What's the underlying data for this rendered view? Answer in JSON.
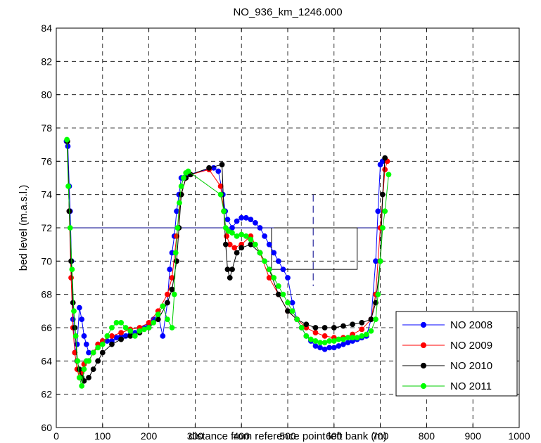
{
  "chart_data": {
    "type": "line",
    "title": "NO_936_km_1246.000",
    "xlabel": "distance from reference point left bank (m)",
    "ylabel": "bed level (m.a.s.l.)",
    "xlim": [
      0,
      1000
    ],
    "ylim": [
      60,
      84
    ],
    "xticks": [
      0,
      100,
      200,
      300,
      400,
      500,
      600,
      700,
      800,
      900,
      1000
    ],
    "yticks": [
      60,
      62,
      64,
      66,
      68,
      70,
      72,
      74,
      76,
      78,
      80,
      82,
      84
    ],
    "grid": true,
    "legend_position": "bottom-right",
    "colors": {
      "frame": "#000000",
      "grid": "#000000",
      "reference": "#00008b"
    },
    "reference_lines": {
      "level_line": {
        "x": [
          25,
          710
        ],
        "y": [
          72,
          72
        ]
      },
      "structure": {
        "x": [
          465,
          465,
          650,
          650,
          470
        ],
        "y": [
          72,
          69.5,
          69.5,
          72,
          72
        ]
      },
      "dashed_vertical": {
        "x": [
          555,
          555
        ],
        "y": [
          74,
          68.5
        ]
      }
    },
    "series": [
      {
        "name": "NO 2008",
        "color": "#0000ff",
        "x": [
          22,
          25,
          28,
          30,
          33,
          36,
          40,
          45,
          50,
          55,
          60,
          65,
          70,
          80,
          90,
          100,
          110,
          120,
          130,
          140,
          150,
          160,
          170,
          180,
          190,
          200,
          210,
          220,
          230,
          240,
          245,
          250,
          255,
          260,
          265,
          270,
          275,
          280,
          285,
          340,
          350,
          360,
          365,
          370,
          380,
          390,
          400,
          410,
          420,
          430,
          440,
          450,
          460,
          470,
          480,
          490,
          500,
          510,
          520,
          530,
          540,
          550,
          560,
          570,
          580,
          590,
          600,
          610,
          620,
          630,
          640,
          650,
          660,
          670,
          680,
          690,
          695,
          700,
          705
        ],
        "y": [
          77.2,
          76.9,
          74.5,
          73.0,
          70.0,
          66.5,
          64.5,
          65.0,
          67.2,
          66.5,
          65.5,
          65.0,
          64.5,
          64.5,
          65.0,
          65.2,
          65.2,
          65.2,
          65.4,
          65.5,
          65.5,
          65.6,
          65.7,
          65.9,
          66.0,
          66.2,
          66.5,
          66.8,
          65.5,
          67.5,
          69.5,
          70.5,
          71.5,
          73.0,
          74.0,
          75.0,
          75.0,
          75.1,
          75.2,
          75.6,
          75.4,
          74.0,
          73.0,
          72.5,
          72.0,
          72.4,
          72.6,
          72.6,
          72.5,
          72.3,
          72.0,
          71.5,
          71.0,
          70.5,
          70.0,
          69.5,
          69.0,
          67.5,
          66.5,
          66.0,
          65.5,
          65.2,
          64.9,
          64.8,
          64.7,
          64.8,
          64.8,
          64.9,
          65.0,
          65.1,
          65.2,
          65.3,
          65.4,
          65.5,
          66.5,
          70.0,
          73.0,
          75.8,
          76.0
        ]
      },
      {
        "name": "NO 2009",
        "color": "#ff0000",
        "x": [
          24,
          28,
          32,
          36,
          40,
          45,
          50,
          55,
          60,
          70,
          80,
          90,
          100,
          120,
          140,
          160,
          180,
          200,
          220,
          240,
          250,
          260,
          270,
          280,
          290,
          330,
          355,
          362,
          368,
          375,
          385,
          400,
          420,
          440,
          460,
          480,
          500,
          520,
          540,
          560,
          580,
          600,
          620,
          640,
          660,
          680,
          690,
          700,
          710,
          715
        ],
        "y": [
          77.2,
          73.0,
          69.0,
          66.0,
          64.5,
          63.5,
          63.0,
          63.3,
          63.8,
          64.0,
          64.5,
          65.0,
          65.2,
          65.5,
          65.7,
          65.9,
          66.0,
          66.3,
          67.0,
          68.0,
          69.0,
          71.5,
          74.0,
          75.0,
          75.2,
          75.5,
          74.5,
          73.0,
          71.5,
          71.0,
          70.8,
          71.0,
          71.5,
          70.5,
          69.0,
          68.0,
          67.0,
          66.5,
          66.0,
          65.7,
          65.5,
          65.4,
          65.4,
          65.6,
          65.9,
          66.5,
          68.0,
          72.0,
          75.5,
          76.0
        ]
      },
      {
        "name": "NO 2010",
        "color": "#000000",
        "x": [
          24,
          28,
          32,
          36,
          40,
          45,
          50,
          55,
          60,
          70,
          80,
          90,
          100,
          120,
          140,
          160,
          180,
          200,
          220,
          240,
          250,
          260,
          265,
          270,
          280,
          290,
          330,
          358,
          362,
          366,
          370,
          375,
          380,
          390,
          400,
          420,
          440,
          460,
          480,
          500,
          520,
          540,
          560,
          580,
          600,
          620,
          640,
          660,
          680,
          690,
          700,
          705,
          710
        ],
        "y": [
          77.2,
          73.0,
          70.0,
          67.5,
          66.0,
          64.0,
          63.5,
          63.0,
          62.8,
          63.0,
          63.5,
          64.0,
          64.5,
          65.0,
          65.3,
          65.5,
          65.7,
          66.0,
          66.5,
          67.5,
          68.3,
          70.0,
          72.0,
          74.0,
          75.0,
          75.2,
          75.6,
          75.8,
          73.0,
          71.0,
          69.5,
          69.0,
          69.5,
          70.5,
          70.8,
          71.0,
          70.5,
          69.5,
          68.0,
          67.0,
          66.5,
          66.2,
          66.0,
          66.0,
          66.0,
          66.1,
          66.2,
          66.3,
          66.5,
          67.5,
          70.0,
          74.0,
          76.2
        ]
      },
      {
        "name": "NO 2011",
        "color": "#00ff00",
        "x": [
          23,
          26,
          30,
          34,
          38,
          42,
          46,
          50,
          55,
          60,
          65,
          70,
          80,
          90,
          100,
          110,
          120,
          130,
          140,
          150,
          160,
          170,
          180,
          190,
          200,
          210,
          220,
          230,
          240,
          250,
          255,
          258,
          262,
          266,
          270,
          275,
          280,
          285,
          355,
          362,
          366,
          372,
          380,
          390,
          400,
          410,
          420,
          430,
          440,
          450,
          460,
          470,
          480,
          490,
          500,
          510,
          520,
          530,
          540,
          550,
          560,
          570,
          580,
          590,
          600,
          610,
          620,
          630,
          640,
          650,
          660,
          670,
          680,
          690,
          695,
          700,
          705,
          710,
          718
        ],
        "y": [
          77.3,
          74.5,
          72.0,
          69.5,
          67.0,
          65.5,
          64.0,
          63.0,
          62.5,
          63.5,
          64.0,
          64.0,
          64.5,
          64.8,
          65.0,
          65.5,
          66.0,
          66.3,
          66.3,
          66.0,
          65.8,
          65.5,
          65.8,
          65.9,
          66.0,
          66.3,
          66.8,
          67.3,
          66.5,
          66.0,
          68.0,
          70.5,
          72.0,
          73.5,
          74.5,
          75.0,
          75.3,
          75.4,
          74.0,
          73.0,
          72.0,
          71.8,
          71.7,
          71.5,
          71.6,
          71.5,
          71.3,
          71.0,
          70.5,
          70.0,
          69.5,
          69.0,
          68.5,
          68.0,
          67.5,
          67.0,
          66.5,
          66.0,
          65.5,
          65.3,
          65.2,
          65.1,
          65.1,
          65.2,
          65.2,
          65.3,
          65.3,
          65.4,
          65.4,
          65.4,
          65.5,
          65.6,
          65.8,
          66.5,
          68.0,
          70.0,
          72.0,
          73.0,
          75.2
        ]
      }
    ]
  }
}
